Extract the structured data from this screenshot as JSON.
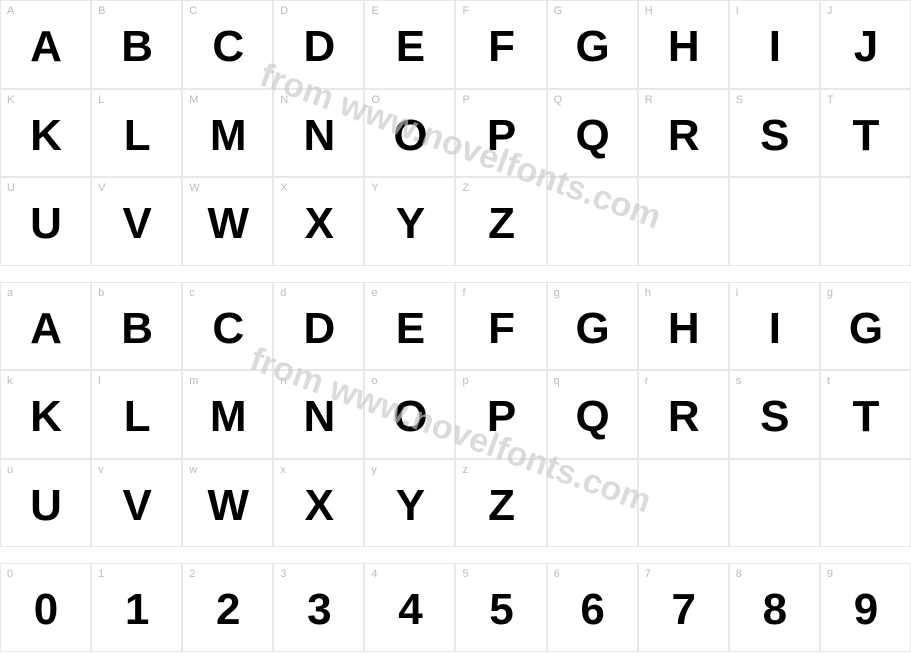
{
  "watermark_text": "from www.novelfonts.com",
  "watermark_color": "#c9c9c9",
  "grid": {
    "columns": 10,
    "label_color": "#bcbcbc",
    "label_fontsize": 11,
    "glyph_color": "#000000",
    "glyph_fontsize": 44,
    "glyph_fontweight": 900,
    "border_color": "#e8e8e8",
    "cell_height": 88.5,
    "background": "#ffffff"
  },
  "rows": [
    {
      "type": "glyphs",
      "cells": [
        {
          "label": "A",
          "glyph": "A"
        },
        {
          "label": "B",
          "glyph": "B"
        },
        {
          "label": "C",
          "glyph": "C"
        },
        {
          "label": "D",
          "glyph": "D"
        },
        {
          "label": "E",
          "glyph": "E"
        },
        {
          "label": "F",
          "glyph": "F"
        },
        {
          "label": "G",
          "glyph": "G"
        },
        {
          "label": "H",
          "glyph": "H"
        },
        {
          "label": "I",
          "glyph": "I"
        },
        {
          "label": "J",
          "glyph": "J"
        }
      ]
    },
    {
      "type": "glyphs",
      "cells": [
        {
          "label": "K",
          "glyph": "K"
        },
        {
          "label": "L",
          "glyph": "L"
        },
        {
          "label": "M",
          "glyph": "M"
        },
        {
          "label": "N",
          "glyph": "N"
        },
        {
          "label": "O",
          "glyph": "O"
        },
        {
          "label": "P",
          "glyph": "P"
        },
        {
          "label": "Q",
          "glyph": "Q"
        },
        {
          "label": "R",
          "glyph": "R"
        },
        {
          "label": "S",
          "glyph": "S"
        },
        {
          "label": "T",
          "glyph": "T"
        }
      ]
    },
    {
      "type": "glyphs",
      "cells": [
        {
          "label": "U",
          "glyph": "U"
        },
        {
          "label": "V",
          "glyph": "V"
        },
        {
          "label": "W",
          "glyph": "W"
        },
        {
          "label": "X",
          "glyph": "X"
        },
        {
          "label": "Y",
          "glyph": "Y"
        },
        {
          "label": "Z",
          "glyph": "Z"
        },
        {
          "label": "",
          "glyph": ""
        },
        {
          "label": "",
          "glyph": ""
        },
        {
          "label": "",
          "glyph": ""
        },
        {
          "label": "",
          "glyph": ""
        }
      ]
    },
    {
      "type": "spacer"
    },
    {
      "type": "glyphs",
      "cells": [
        {
          "label": "a",
          "glyph": "A"
        },
        {
          "label": "b",
          "glyph": "B"
        },
        {
          "label": "c",
          "glyph": "C"
        },
        {
          "label": "d",
          "glyph": "D"
        },
        {
          "label": "e",
          "glyph": "E"
        },
        {
          "label": "f",
          "glyph": "F"
        },
        {
          "label": "g",
          "glyph": "G"
        },
        {
          "label": "h",
          "glyph": "H"
        },
        {
          "label": "i",
          "glyph": "I"
        },
        {
          "label": "g",
          "glyph": "G"
        }
      ]
    },
    {
      "type": "glyphs",
      "cells": [
        {
          "label": "k",
          "glyph": "K"
        },
        {
          "label": "l",
          "glyph": "L"
        },
        {
          "label": "m",
          "glyph": "M"
        },
        {
          "label": "n",
          "glyph": "N"
        },
        {
          "label": "o",
          "glyph": "O"
        },
        {
          "label": "p",
          "glyph": "P"
        },
        {
          "label": "q",
          "glyph": "Q"
        },
        {
          "label": "r",
          "glyph": "R"
        },
        {
          "label": "s",
          "glyph": "S"
        },
        {
          "label": "t",
          "glyph": "T"
        }
      ]
    },
    {
      "type": "glyphs",
      "cells": [
        {
          "label": "u",
          "glyph": "U"
        },
        {
          "label": "v",
          "glyph": "V"
        },
        {
          "label": "w",
          "glyph": "W"
        },
        {
          "label": "x",
          "glyph": "X"
        },
        {
          "label": "y",
          "glyph": "Y"
        },
        {
          "label": "z",
          "glyph": "Z"
        },
        {
          "label": "",
          "glyph": ""
        },
        {
          "label": "",
          "glyph": ""
        },
        {
          "label": "",
          "glyph": ""
        },
        {
          "label": "",
          "glyph": ""
        }
      ]
    },
    {
      "type": "spacer"
    },
    {
      "type": "glyphs",
      "cells": [
        {
          "label": "0",
          "glyph": "0"
        },
        {
          "label": "1",
          "glyph": "1"
        },
        {
          "label": "2",
          "glyph": "2"
        },
        {
          "label": "3",
          "glyph": "3"
        },
        {
          "label": "4",
          "glyph": "4"
        },
        {
          "label": "5",
          "glyph": "5"
        },
        {
          "label": "6",
          "glyph": "6"
        },
        {
          "label": "7",
          "glyph": "7"
        },
        {
          "label": "8",
          "glyph": "8"
        },
        {
          "label": "9",
          "glyph": "9"
        }
      ]
    }
  ]
}
